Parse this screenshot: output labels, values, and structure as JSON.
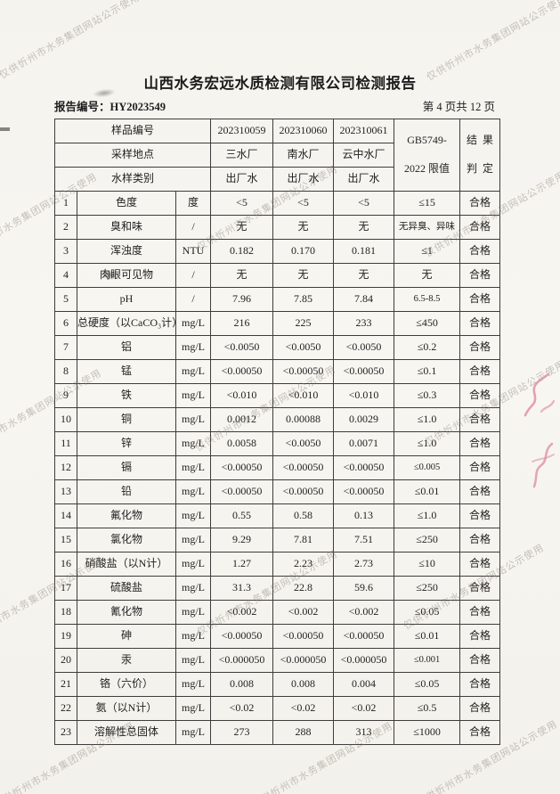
{
  "page": {
    "title": "山西水务宏远水质检测有限公司检测报告",
    "report_no": "报告编号：HY2023549",
    "page_indicator": "第 4 页共 12 页"
  },
  "watermark": {
    "text": "仅供忻州市水务集团网站公示使用"
  },
  "table": {
    "header": {
      "sample_no_label": "样品编号",
      "sample_site_label": "采样地点",
      "sample_type_label": "水样类别",
      "sample_nos": [
        "202310059",
        "202310060",
        "202310061"
      ],
      "sample_sites": [
        "三水厂",
        "南水厂",
        "云中水厂"
      ],
      "sample_types": [
        "出厂水",
        "出厂水",
        "出厂水"
      ],
      "limit_label_line1": "GB5749-",
      "limit_label_line2": "2022 限值",
      "result_label_line1": "结果",
      "result_label_line2": "判定"
    },
    "rows": [
      {
        "no": "1",
        "name": "色度",
        "unit": "度",
        "v1": "<5",
        "v2": "<5",
        "v3": "<5",
        "limit": "≤15",
        "result": "合格"
      },
      {
        "no": "2",
        "name": "臭和味",
        "unit": "/",
        "v1": "无",
        "v2": "无",
        "v3": "无",
        "limit": "无异臭、异味",
        "result": "合格"
      },
      {
        "no": "3",
        "name": "浑浊度",
        "unit": "NTU",
        "v1": "0.182",
        "v2": "0.170",
        "v3": "0.181",
        "limit": "≤1",
        "result": "合格"
      },
      {
        "no": "4",
        "name": "肉眼可见物",
        "unit": "/",
        "v1": "无",
        "v2": "无",
        "v3": "无",
        "limit": "无",
        "result": "合格"
      },
      {
        "no": "5",
        "name": "pH",
        "unit": "/",
        "v1": "7.96",
        "v2": "7.85",
        "v3": "7.84",
        "limit": "6.5-8.5",
        "result": "合格"
      },
      {
        "no": "6",
        "name": "总硬度（以CaCO₃计）",
        "unit": "mg/L",
        "v1": "216",
        "v2": "225",
        "v3": "233",
        "limit": "≤450",
        "result": "合格"
      },
      {
        "no": "7",
        "name": "铝",
        "unit": "mg/L",
        "v1": "<0.0050",
        "v2": "<0.0050",
        "v3": "<0.0050",
        "limit": "≤0.2",
        "result": "合格"
      },
      {
        "no": "8",
        "name": "锰",
        "unit": "mg/L",
        "v1": "<0.00050",
        "v2": "<0.00050",
        "v3": "<0.00050",
        "limit": "≤0.1",
        "result": "合格"
      },
      {
        "no": "9",
        "name": "铁",
        "unit": "mg/L",
        "v1": "<0.010",
        "v2": "<0.010",
        "v3": "<0.010",
        "limit": "≤0.3",
        "result": "合格"
      },
      {
        "no": "10",
        "name": "铜",
        "unit": "mg/L",
        "v1": "0.0012",
        "v2": "0.00088",
        "v3": "0.0029",
        "limit": "≤1.0",
        "result": "合格"
      },
      {
        "no": "11",
        "name": "锌",
        "unit": "mg/L",
        "v1": "0.0058",
        "v2": "<0.0050",
        "v3": "0.0071",
        "limit": "≤1.0",
        "result": "合格"
      },
      {
        "no": "12",
        "name": "镉",
        "unit": "mg/L",
        "v1": "<0.00050",
        "v2": "<0.00050",
        "v3": "<0.00050",
        "limit": "≤0.005",
        "result": "合格"
      },
      {
        "no": "13",
        "name": "铅",
        "unit": "mg/L",
        "v1": "<0.00050",
        "v2": "<0.00050",
        "v3": "<0.00050",
        "limit": "≤0.01",
        "result": "合格"
      },
      {
        "no": "14",
        "name": "氟化物",
        "unit": "mg/L",
        "v1": "0.55",
        "v2": "0.58",
        "v3": "0.13",
        "limit": "≤1.0",
        "result": "合格"
      },
      {
        "no": "15",
        "name": "氯化物",
        "unit": "mg/L",
        "v1": "9.29",
        "v2": "7.81",
        "v3": "7.51",
        "limit": "≤250",
        "result": "合格"
      },
      {
        "no": "16",
        "name": "硝酸盐（以N计）",
        "unit": "mg/L",
        "v1": "1.27",
        "v2": "2.23",
        "v3": "2.73",
        "limit": "≤10",
        "result": "合格"
      },
      {
        "no": "17",
        "name": "硫酸盐",
        "unit": "mg/L",
        "v1": "31.3",
        "v2": "22.8",
        "v3": "59.6",
        "limit": "≤250",
        "result": "合格"
      },
      {
        "no": "18",
        "name": "氰化物",
        "unit": "mg/L",
        "v1": "<0.002",
        "v2": "<0.002",
        "v3": "<0.002",
        "limit": "≤0.05",
        "result": "合格"
      },
      {
        "no": "19",
        "name": "砷",
        "unit": "mg/L",
        "v1": "<0.00050",
        "v2": "<0.00050",
        "v3": "<0.00050",
        "limit": "≤0.01",
        "result": "合格"
      },
      {
        "no": "20",
        "name": "汞",
        "unit": "mg/L",
        "v1": "<0.000050",
        "v2": "<0.000050",
        "v3": "<0.000050",
        "limit": "≤0.001",
        "result": "合格"
      },
      {
        "no": "21",
        "name": "铬（六价）",
        "unit": "mg/L",
        "v1": "0.008",
        "v2": "0.008",
        "v3": "0.004",
        "limit": "≤0.05",
        "result": "合格"
      },
      {
        "no": "22",
        "name": "氨（以N计）",
        "unit": "mg/L",
        "v1": "<0.02",
        "v2": "<0.02",
        "v3": "<0.02",
        "limit": "≤0.5",
        "result": "合格"
      },
      {
        "no": "23",
        "name": "溶解性总固体",
        "unit": "mg/L",
        "v1": "273",
        "v2": "288",
        "v3": "313",
        "limit": "≤1000",
        "result": "合格"
      }
    ]
  }
}
